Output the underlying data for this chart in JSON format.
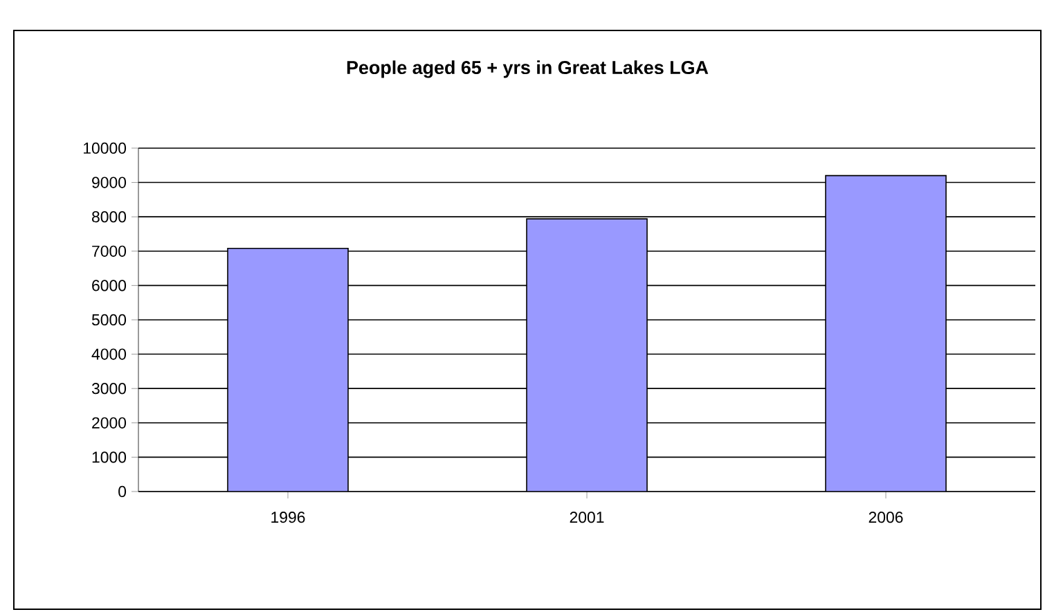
{
  "chart_data": {
    "type": "bar",
    "title": "People aged 65 + yrs in Great Lakes LGA",
    "categories": [
      "1996",
      "2001",
      "2006"
    ],
    "values": [
      7080,
      7940,
      9200
    ],
    "color": "#9999ff",
    "ylim": [
      0,
      10000
    ],
    "yticks": [
      0,
      1000,
      2000,
      3000,
      4000,
      5000,
      6000,
      7000,
      8000,
      9000,
      10000
    ],
    "grid": "y"
  }
}
